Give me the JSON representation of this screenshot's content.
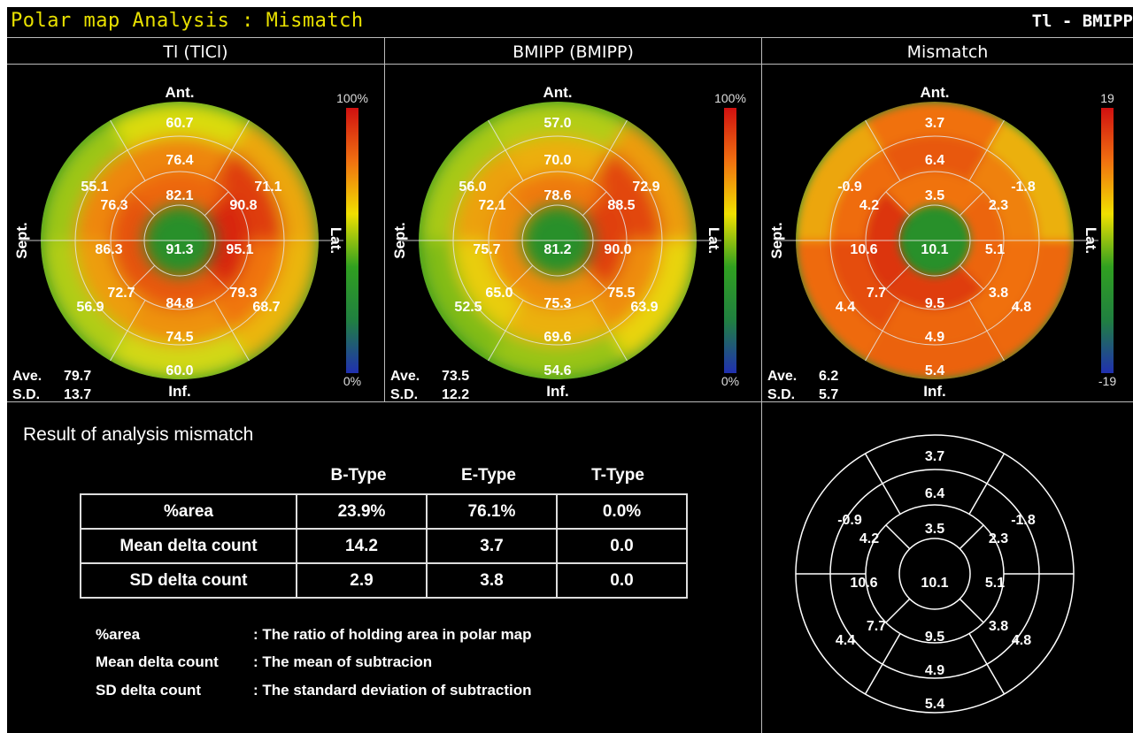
{
  "header": {
    "title": "Polar map Analysis : Mismatch",
    "right_title": "Tl - BMIPP"
  },
  "panels": [
    {
      "name": "Tl (TlCl)",
      "labels": {
        "ant": "Ant.",
        "inf": "Inf.",
        "sept": "Sept.",
        "lat": "Lat."
      },
      "scale_max": "100%",
      "scale_min": "0%",
      "values": [
        "60.7",
        "76.4",
        "82.1",
        "55.1",
        "76.3",
        "71.1",
        "90.8",
        "86.3",
        "91.3",
        "95.1",
        "72.7",
        "56.9",
        "79.3",
        "68.7",
        "84.8",
        "74.5",
        "60.0"
      ],
      "ave_label": "Ave.",
      "ave": "79.7",
      "sd_label": "S.D.",
      "sd": "13.7"
    },
    {
      "name": "BMIPP (BMIPP)",
      "labels": {
        "ant": "Ant.",
        "inf": "Inf.",
        "sept": "Sept.",
        "lat": "Lat."
      },
      "scale_max": "100%",
      "scale_min": "0%",
      "values": [
        "57.0",
        "70.0",
        "78.6",
        "56.0",
        "72.1",
        "72.9",
        "88.5",
        "75.7",
        "81.2",
        "90.0",
        "65.0",
        "52.5",
        "75.5",
        "63.9",
        "75.3",
        "69.6",
        "54.6"
      ],
      "ave_label": "Ave.",
      "ave": "73.5",
      "sd_label": "S.D.",
      "sd": "12.2"
    },
    {
      "name": "Mismatch",
      "labels": {
        "ant": "Ant.",
        "inf": "Inf.",
        "sept": "Sept.",
        "lat": "Lat."
      },
      "scale_max": "19",
      "scale_min": "-19",
      "values": [
        "3.7",
        "6.4",
        "3.5",
        "-0.9",
        "4.2",
        "-1.8",
        "2.3",
        "10.6",
        "10.1",
        "5.1",
        "7.7",
        "4.4",
        "3.8",
        "4.8",
        "9.5",
        "4.9",
        "5.4"
      ],
      "ave_label": "Ave.",
      "ave": "6.2",
      "sd_label": "S.D.",
      "sd": "5.7"
    }
  ],
  "result": {
    "title": "Result of analysis mismatch",
    "columns": [
      "B-Type",
      "E-Type",
      "T-Type"
    ],
    "rows": [
      {
        "label": "%area",
        "cells": [
          "23.9%",
          "76.1%",
          "0.0%"
        ]
      },
      {
        "label": "Mean delta count",
        "cells": [
          "14.2",
          "3.7",
          "0.0"
        ]
      },
      {
        "label": "SD delta count",
        "cells": [
          "2.9",
          "3.8",
          "0.0"
        ]
      }
    ],
    "legend": [
      {
        "key": "%area",
        "text": ": The ratio of holding area in polar map"
      },
      {
        "key": "Mean delta count",
        "text": ": The mean of subtracion"
      },
      {
        "key": "SD delta count",
        "text": ": The standard deviation of subtraction"
      }
    ]
  },
  "schematic": {
    "values": [
      "3.7",
      "6.4",
      "3.5",
      "-0.9",
      "4.2",
      "-1.8",
      "2.3",
      "10.6",
      "10.1",
      "5.1",
      "7.7",
      "4.4",
      "3.8",
      "4.8",
      "9.5",
      "4.9",
      "5.4"
    ]
  },
  "colors": {
    "title": "#e8e000",
    "scale": [
      "#d01010",
      "#f07010",
      "#f0e000",
      "#30a020",
      "#208040",
      "#2030b0"
    ]
  }
}
